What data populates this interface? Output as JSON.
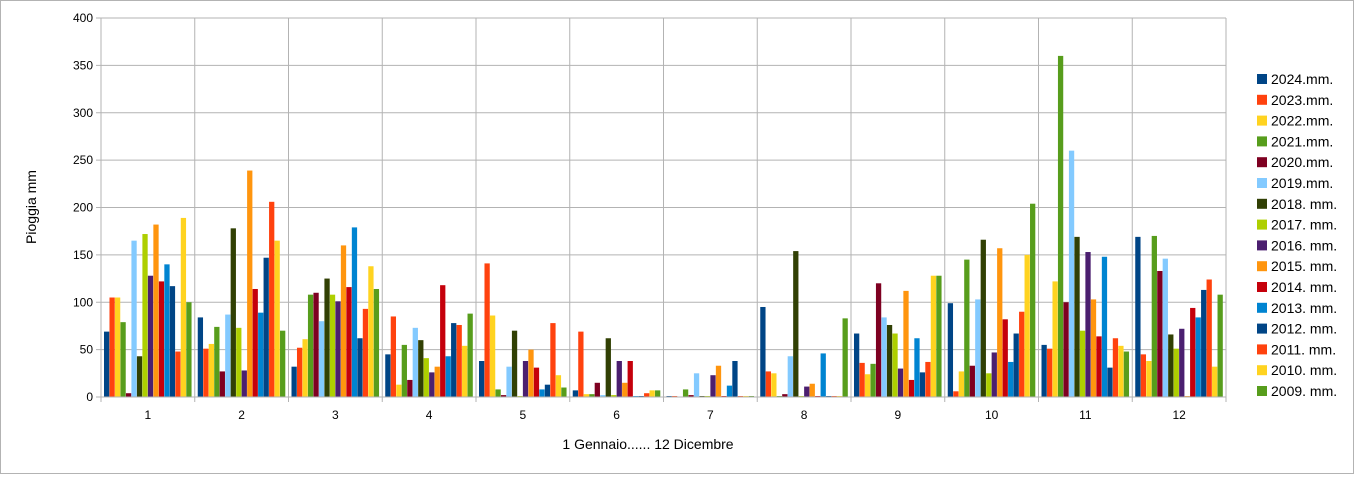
{
  "chart_data": {
    "type": "bar",
    "xlabel": "1 Gennaio...... 12 Dicembre",
    "ylabel": "Pioggia mm",
    "ylim": [
      0,
      400
    ],
    "yticks": [
      0,
      50,
      100,
      150,
      200,
      250,
      300,
      350,
      400
    ],
    "grid": true,
    "legend_position": "right",
    "categories": [
      "1",
      "2",
      "3",
      "4",
      "5",
      "6",
      "7",
      "8",
      "9",
      "10",
      "11",
      "12"
    ],
    "series": [
      {
        "name": "2024.mm.",
        "color": "#004586",
        "values": [
          69,
          84,
          32,
          45,
          38,
          7,
          1,
          95,
          67,
          99,
          55,
          169
        ]
      },
      {
        "name": "2023.mm.",
        "color": "#ff420e",
        "values": [
          105,
          51,
          52,
          85,
          141,
          69,
          1,
          27,
          36,
          6,
          51,
          45
        ]
      },
      {
        "name": "2022.mm.",
        "color": "#ffd320",
        "values": [
          105,
          56,
          61,
          13,
          86,
          3,
          0,
          25,
          24,
          27,
          122,
          38
        ]
      },
      {
        "name": "2021.mm.",
        "color": "#579d1c",
        "values": [
          79,
          74,
          108,
          55,
          8,
          3,
          8,
          1,
          35,
          145,
          360,
          170
        ]
      },
      {
        "name": "2020.mm.",
        "color": "#7e0021",
        "values": [
          4,
          27,
          110,
          18,
          2,
          15,
          2,
          3,
          120,
          33,
          100,
          133
        ]
      },
      {
        "name": "2019.mm.",
        "color": "#83caff",
        "values": [
          165,
          87,
          80,
          73,
          32,
          2,
          25,
          43,
          84,
          103,
          260,
          146
        ]
      },
      {
        "name": "2018. mm.",
        "color": "#314004",
        "values": [
          43,
          178,
          125,
          60,
          70,
          62,
          1,
          154,
          76,
          166,
          169,
          66
        ]
      },
      {
        "name": "2017. mm.",
        "color": "#aecf00",
        "values": [
          172,
          73,
          108,
          41,
          1,
          2,
          1,
          1,
          67,
          25,
          70,
          51
        ]
      },
      {
        "name": "2016. mm.",
        "color": "#4b1f6f",
        "values": [
          128,
          28,
          101,
          26,
          38,
          38,
          23,
          11,
          30,
          47,
          153,
          72
        ]
      },
      {
        "name": "2015. mm.",
        "color": "#ff950e",
        "values": [
          182,
          239,
          160,
          32,
          50,
          15,
          33,
          14,
          112,
          157,
          103,
          1
        ]
      },
      {
        "name": "2014. mm.",
        "color": "#c5000b",
        "values": [
          122,
          114,
          116,
          118,
          31,
          38,
          1,
          1,
          18,
          82,
          64,
          94
        ]
      },
      {
        "name": "2013. mm.",
        "color": "#0084d1",
        "values": [
          140,
          89,
          179,
          43,
          8,
          1,
          12,
          46,
          62,
          37,
          148,
          84
        ]
      },
      {
        "name": "2012. mm.",
        "color": "#004586",
        "values": [
          117,
          147,
          62,
          78,
          13,
          1,
          38,
          1,
          26,
          67,
          31,
          113
        ]
      },
      {
        "name": "2011. mm.",
        "color": "#ff420e",
        "values": [
          48,
          206,
          93,
          76,
          78,
          4,
          1,
          1,
          37,
          90,
          62,
          124
        ]
      },
      {
        "name": "2010. mm.",
        "color": "#ffd320",
        "values": [
          189,
          165,
          138,
          54,
          23,
          7,
          1,
          1,
          128,
          150,
          54,
          32
        ]
      },
      {
        "name": "2009. mm.",
        "color": "#579d1c",
        "values": [
          100,
          70,
          114,
          88,
          10,
          7,
          1,
          83,
          128,
          204,
          48,
          108
        ]
      }
    ]
  }
}
